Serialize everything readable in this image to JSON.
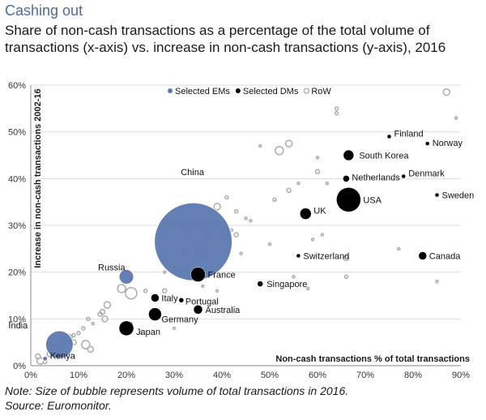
{
  "title": "Cashing out",
  "subtitle": "Share of non-cash transactions as a percentage of the total volume of transactions (x-axis) vs. increase in non-cash transactions (y-axis), 2016",
  "note_line1": "Note: Size of bubble represents volume of total transactions in 2016.",
  "note_line2": "Source: Euromonitor.",
  "chart_data": {
    "type": "scatter",
    "xlabel": "Non-cash transactions % of total transactions",
    "ylabel": "Increase in non-cash transactions 2002-16",
    "xlim": [
      0,
      90
    ],
    "ylim": [
      0,
      60
    ],
    "xticks": [
      "0%",
      "10%",
      "20%",
      "30%",
      "40%",
      "50%",
      "60%",
      "70%",
      "80%",
      "90%"
    ],
    "yticks": [
      "0%",
      "10%",
      "20%",
      "30%",
      "40%",
      "50%",
      "60%"
    ],
    "legend": {
      "placement": "top",
      "entries": [
        {
          "name": "Selected EMs",
          "color": "#5b78b0"
        },
        {
          "name": "Selected DMs",
          "color": "#000000"
        },
        {
          "name": "RoW",
          "color": "#aaaaaa"
        }
      ]
    },
    "series": [
      {
        "name": "Selected EMs",
        "points": [
          {
            "label": "China",
            "x": 34,
            "y": 26.5,
            "r": 48
          },
          {
            "label": "Russia",
            "x": 20,
            "y": 19,
            "r": 9
          },
          {
            "label": "India",
            "x": 6,
            "y": 4.5,
            "r": 17
          },
          {
            "label": "Kenya",
            "x": 3,
            "y": 1.5,
            "r": 3
          }
        ]
      },
      {
        "name": "Selected DMs",
        "points": [
          {
            "label": "Finland",
            "x": 75,
            "y": 49,
            "r": 2.5
          },
          {
            "label": "Norway",
            "x": 83,
            "y": 47.5,
            "r": 2.5
          },
          {
            "label": "South Korea",
            "x": 66.5,
            "y": 45,
            "r": 6.5
          },
          {
            "label": "Netherlands",
            "x": 66,
            "y": 40,
            "r": 4
          },
          {
            "label": "Denmark",
            "x": 78,
            "y": 40.5,
            "r": 2.5
          },
          {
            "label": "Sweden",
            "x": 85,
            "y": 36.5,
            "r": 2.5
          },
          {
            "label": "USA",
            "x": 66.5,
            "y": 35.5,
            "r": 15
          },
          {
            "label": "UK",
            "x": 57.5,
            "y": 32.5,
            "r": 7
          },
          {
            "label": "Switzerland",
            "x": 56,
            "y": 23.5,
            "r": 2.5
          },
          {
            "label": "Canada",
            "x": 82,
            "y": 23.5,
            "r": 5
          },
          {
            "label": "France",
            "x": 35,
            "y": 19.5,
            "r": 9
          },
          {
            "label": "Singapore",
            "x": 48,
            "y": 17.5,
            "r": 3.5
          },
          {
            "label": "Italy",
            "x": 26,
            "y": 14.5,
            "r": 5
          },
          {
            "label": "Portugal",
            "x": 31.5,
            "y": 14,
            "r": 3
          },
          {
            "label": "Australia",
            "x": 35,
            "y": 12,
            "r": 5.5
          },
          {
            "label": "Germany",
            "x": 26,
            "y": 11,
            "r": 8
          },
          {
            "label": "Japan",
            "x": 20,
            "y": 8,
            "r": 9
          }
        ]
      },
      {
        "name": "RoW",
        "points": [
          {
            "x": 87,
            "y": 58.5,
            "r": 4
          },
          {
            "x": 89,
            "y": 53,
            "r": 1.5
          },
          {
            "x": 64,
            "y": 54,
            "r": 2
          },
          {
            "x": 64,
            "y": 55,
            "r": 2
          },
          {
            "x": 54,
            "y": 47.5,
            "r": 4
          },
          {
            "x": 52,
            "y": 46,
            "r": 5
          },
          {
            "x": 60,
            "y": 44.5,
            "r": 1.5
          },
          {
            "x": 48,
            "y": 47,
            "r": 1.5
          },
          {
            "x": 56,
            "y": 39,
            "r": 1.5
          },
          {
            "x": 60,
            "y": 41.5,
            "r": 2.5
          },
          {
            "x": 62,
            "y": 39,
            "r": 1.5
          },
          {
            "x": 51,
            "y": 35.5,
            "r": 2
          },
          {
            "x": 54,
            "y": 37.5,
            "r": 2.5
          },
          {
            "x": 39,
            "y": 34,
            "r": 4
          },
          {
            "x": 41,
            "y": 36,
            "r": 2
          },
          {
            "x": 43,
            "y": 33,
            "r": 2
          },
          {
            "x": 46,
            "y": 31,
            "r": 1.5
          },
          {
            "x": 45,
            "y": 31.5,
            "r": 1.5
          },
          {
            "x": 41,
            "y": 28.5,
            "r": 3.5
          },
          {
            "x": 43,
            "y": 28,
            "r": 2.5
          },
          {
            "x": 42,
            "y": 29,
            "r": 1.5
          },
          {
            "x": 37,
            "y": 28,
            "r": 2.5
          },
          {
            "x": 33,
            "y": 30,
            "r": 3
          },
          {
            "x": 35.5,
            "y": 24,
            "r": 6
          },
          {
            "x": 32,
            "y": 24,
            "r": 1.5
          },
          {
            "x": 59,
            "y": 27,
            "r": 1.5
          },
          {
            "x": 61,
            "y": 28,
            "r": 1.5
          },
          {
            "x": 66,
            "y": 23,
            "r": 3
          },
          {
            "x": 66,
            "y": 19,
            "r": 2
          },
          {
            "x": 77,
            "y": 25,
            "r": 1.5
          },
          {
            "x": 85,
            "y": 18,
            "r": 1.5
          },
          {
            "x": 55,
            "y": 19,
            "r": 1.5
          },
          {
            "x": 58,
            "y": 16.5,
            "r": 1.5
          },
          {
            "x": 36,
            "y": 17,
            "r": 1.5
          },
          {
            "x": 39,
            "y": 16,
            "r": 1.5
          },
          {
            "x": 19,
            "y": 16.5,
            "r": 5
          },
          {
            "x": 21,
            "y": 15.5,
            "r": 7
          },
          {
            "x": 24,
            "y": 16,
            "r": 2
          },
          {
            "x": 28,
            "y": 16,
            "r": 2.5
          },
          {
            "x": 16,
            "y": 13,
            "r": 4
          },
          {
            "x": 15,
            "y": 11.5,
            "r": 3
          },
          {
            "x": 14.5,
            "y": 11,
            "r": 2.5
          },
          {
            "x": 15.5,
            "y": 10,
            "r": 3.5
          },
          {
            "x": 12,
            "y": 10,
            "r": 2
          },
          {
            "x": 13,
            "y": 9,
            "r": 1.5
          },
          {
            "x": 11,
            "y": 8,
            "r": 2
          },
          {
            "x": 10,
            "y": 7,
            "r": 2
          },
          {
            "x": 9,
            "y": 6.5,
            "r": 2
          },
          {
            "x": 8,
            "y": 6,
            "r": 4
          },
          {
            "x": 7,
            "y": 5.5,
            "r": 3
          },
          {
            "x": 11.5,
            "y": 4.5,
            "r": 5
          },
          {
            "x": 12.5,
            "y": 3.5,
            "r": 3.5
          },
          {
            "x": 9,
            "y": 5,
            "r": 3
          },
          {
            "x": 5,
            "y": 3.5,
            "r": 5
          },
          {
            "x": 4,
            "y": 2.5,
            "r": 3.5
          },
          {
            "x": 2,
            "y": 1,
            "r": 4
          },
          {
            "x": 1.5,
            "y": 2,
            "r": 3
          },
          {
            "x": 3,
            "y": 0.8,
            "r": 2
          },
          {
            "x": 6,
            "y": 2,
            "r": 2
          },
          {
            "x": 21,
            "y": 9,
            "r": 1.5
          },
          {
            "x": 23,
            "y": 7,
            "r": 1.5
          },
          {
            "x": 30,
            "y": 8,
            "r": 1.5
          },
          {
            "x": 28,
            "y": 20,
            "r": 1.5
          },
          {
            "x": 44,
            "y": 24,
            "r": 1.5
          },
          {
            "x": 50,
            "y": 26,
            "r": 1.5
          }
        ]
      }
    ]
  }
}
